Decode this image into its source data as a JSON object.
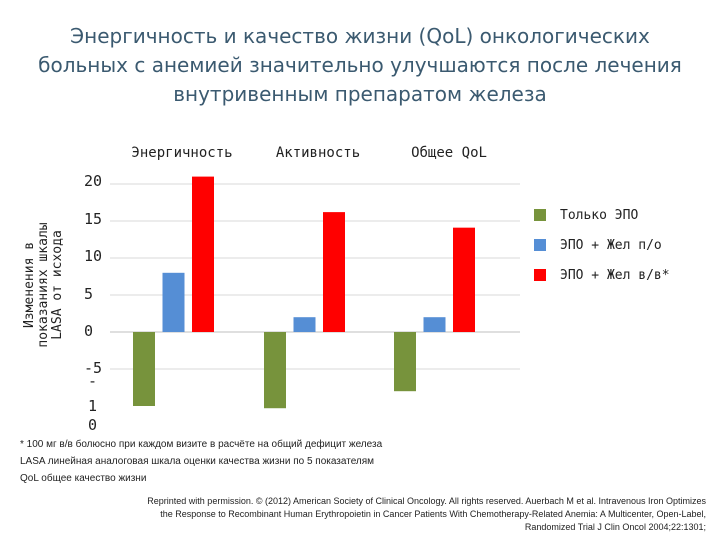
{
  "title_lines": [
    "Энергичность и качество жизни (QoL) онкологических",
    "больных с анемией значительно улучшаются после лечения",
    "внутривенным препаратом  железа"
  ],
  "chart_data": {
    "type": "bar",
    "categories": [
      "Энергичность",
      "Активность",
      "Общее QoL"
    ],
    "ylabel": [
      "Изменения в",
      "показаниях шкалы",
      "LASA от исхода"
    ],
    "y_ticks": [
      "20",
      "15",
      "10",
      "5",
      "0",
      "-5",
      "-",
      "1",
      "0"
    ],
    "ylim": [
      -10,
      20
    ],
    "grid": "horizontal",
    "legend_position": "right",
    "series": [
      {
        "name": "Только ЭПО",
        "color": "#77933c",
        "values": [
          -10,
          -10.3,
          -8
        ]
      },
      {
        "name": "ЭПО + Жел п/о",
        "color": "#558ed5",
        "values": [
          8,
          2,
          2
        ]
      },
      {
        "name": "ЭПО + Жел в/в*",
        "color": "#ff0000",
        "values": [
          21,
          16.2,
          14.1
        ]
      }
    ]
  },
  "notes": [
    "* 100 мг в/в болюсно при каждом визите в расчёте на общий  дефицит железа",
    "LASA линейная аналоговая шкала оценки качества жизни по 5 показателям",
    "QoL общее качество жизни"
  ],
  "credit_lines": [
    "Reprinted with permission. © (2012) American Society of Clinical Oncology. All rights reserved. Auerbach M et al. Intravenous Iron Optimizes",
    "the Response to Recombinant Human Erythropoietin in Cancer Patients With Chemotherapy-Related Anemia: A Multicenter, Open-Label,",
    "Randomized Trial J Clin Oncol 2004;22:1301;"
  ]
}
